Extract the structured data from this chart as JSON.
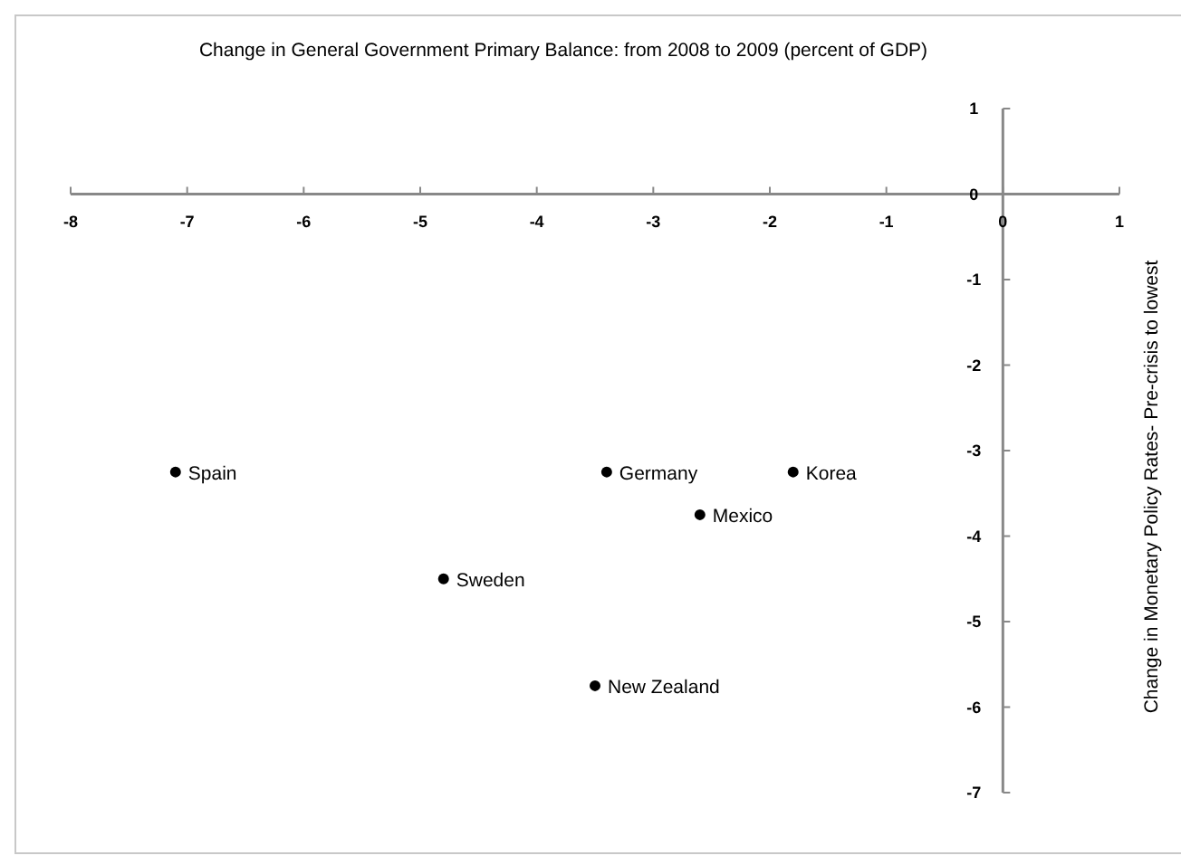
{
  "chart_data": {
    "type": "scatter",
    "title": "Change in General  Government Primary Balance: from 2008 to 2009 (percent of GDP)",
    "ylabel": "Change in Monetary Policy Rates- Pre-crisis to lowest",
    "x": [
      -7.1,
      -3.4,
      -1.8,
      -2.6,
      -4.8,
      -3.5
    ],
    "values": [
      -3.25,
      -3.25,
      -3.25,
      -3.75,
      -4.5,
      -5.75
    ],
    "color": "#000000",
    "marker": "circle",
    "grid": false,
    "legend": false,
    "xlim": [
      -8,
      1
    ],
    "xticks": [
      -8,
      -7,
      -6,
      -5,
      -4,
      -3,
      -2,
      -1,
      0,
      1
    ],
    "ylim": [
      -7,
      1
    ],
    "yticks": [
      -7,
      -6,
      -5,
      -4,
      -3,
      -2,
      -1,
      0,
      1
    ],
    "annotations": [
      {
        "text": "Spain",
        "x": -7.1,
        "y": -3.25
      },
      {
        "text": "Germany",
        "x": -3.4,
        "y": -3.25
      },
      {
        "text": "Korea",
        "x": -1.8,
        "y": -3.25
      },
      {
        "text": "Mexico",
        "x": -2.6,
        "y": -3.75
      },
      {
        "text": "Sweden",
        "x": -4.8,
        "y": -4.5
      },
      {
        "text": "New Zealand",
        "x": -3.5,
        "y": -5.75
      }
    ]
  }
}
